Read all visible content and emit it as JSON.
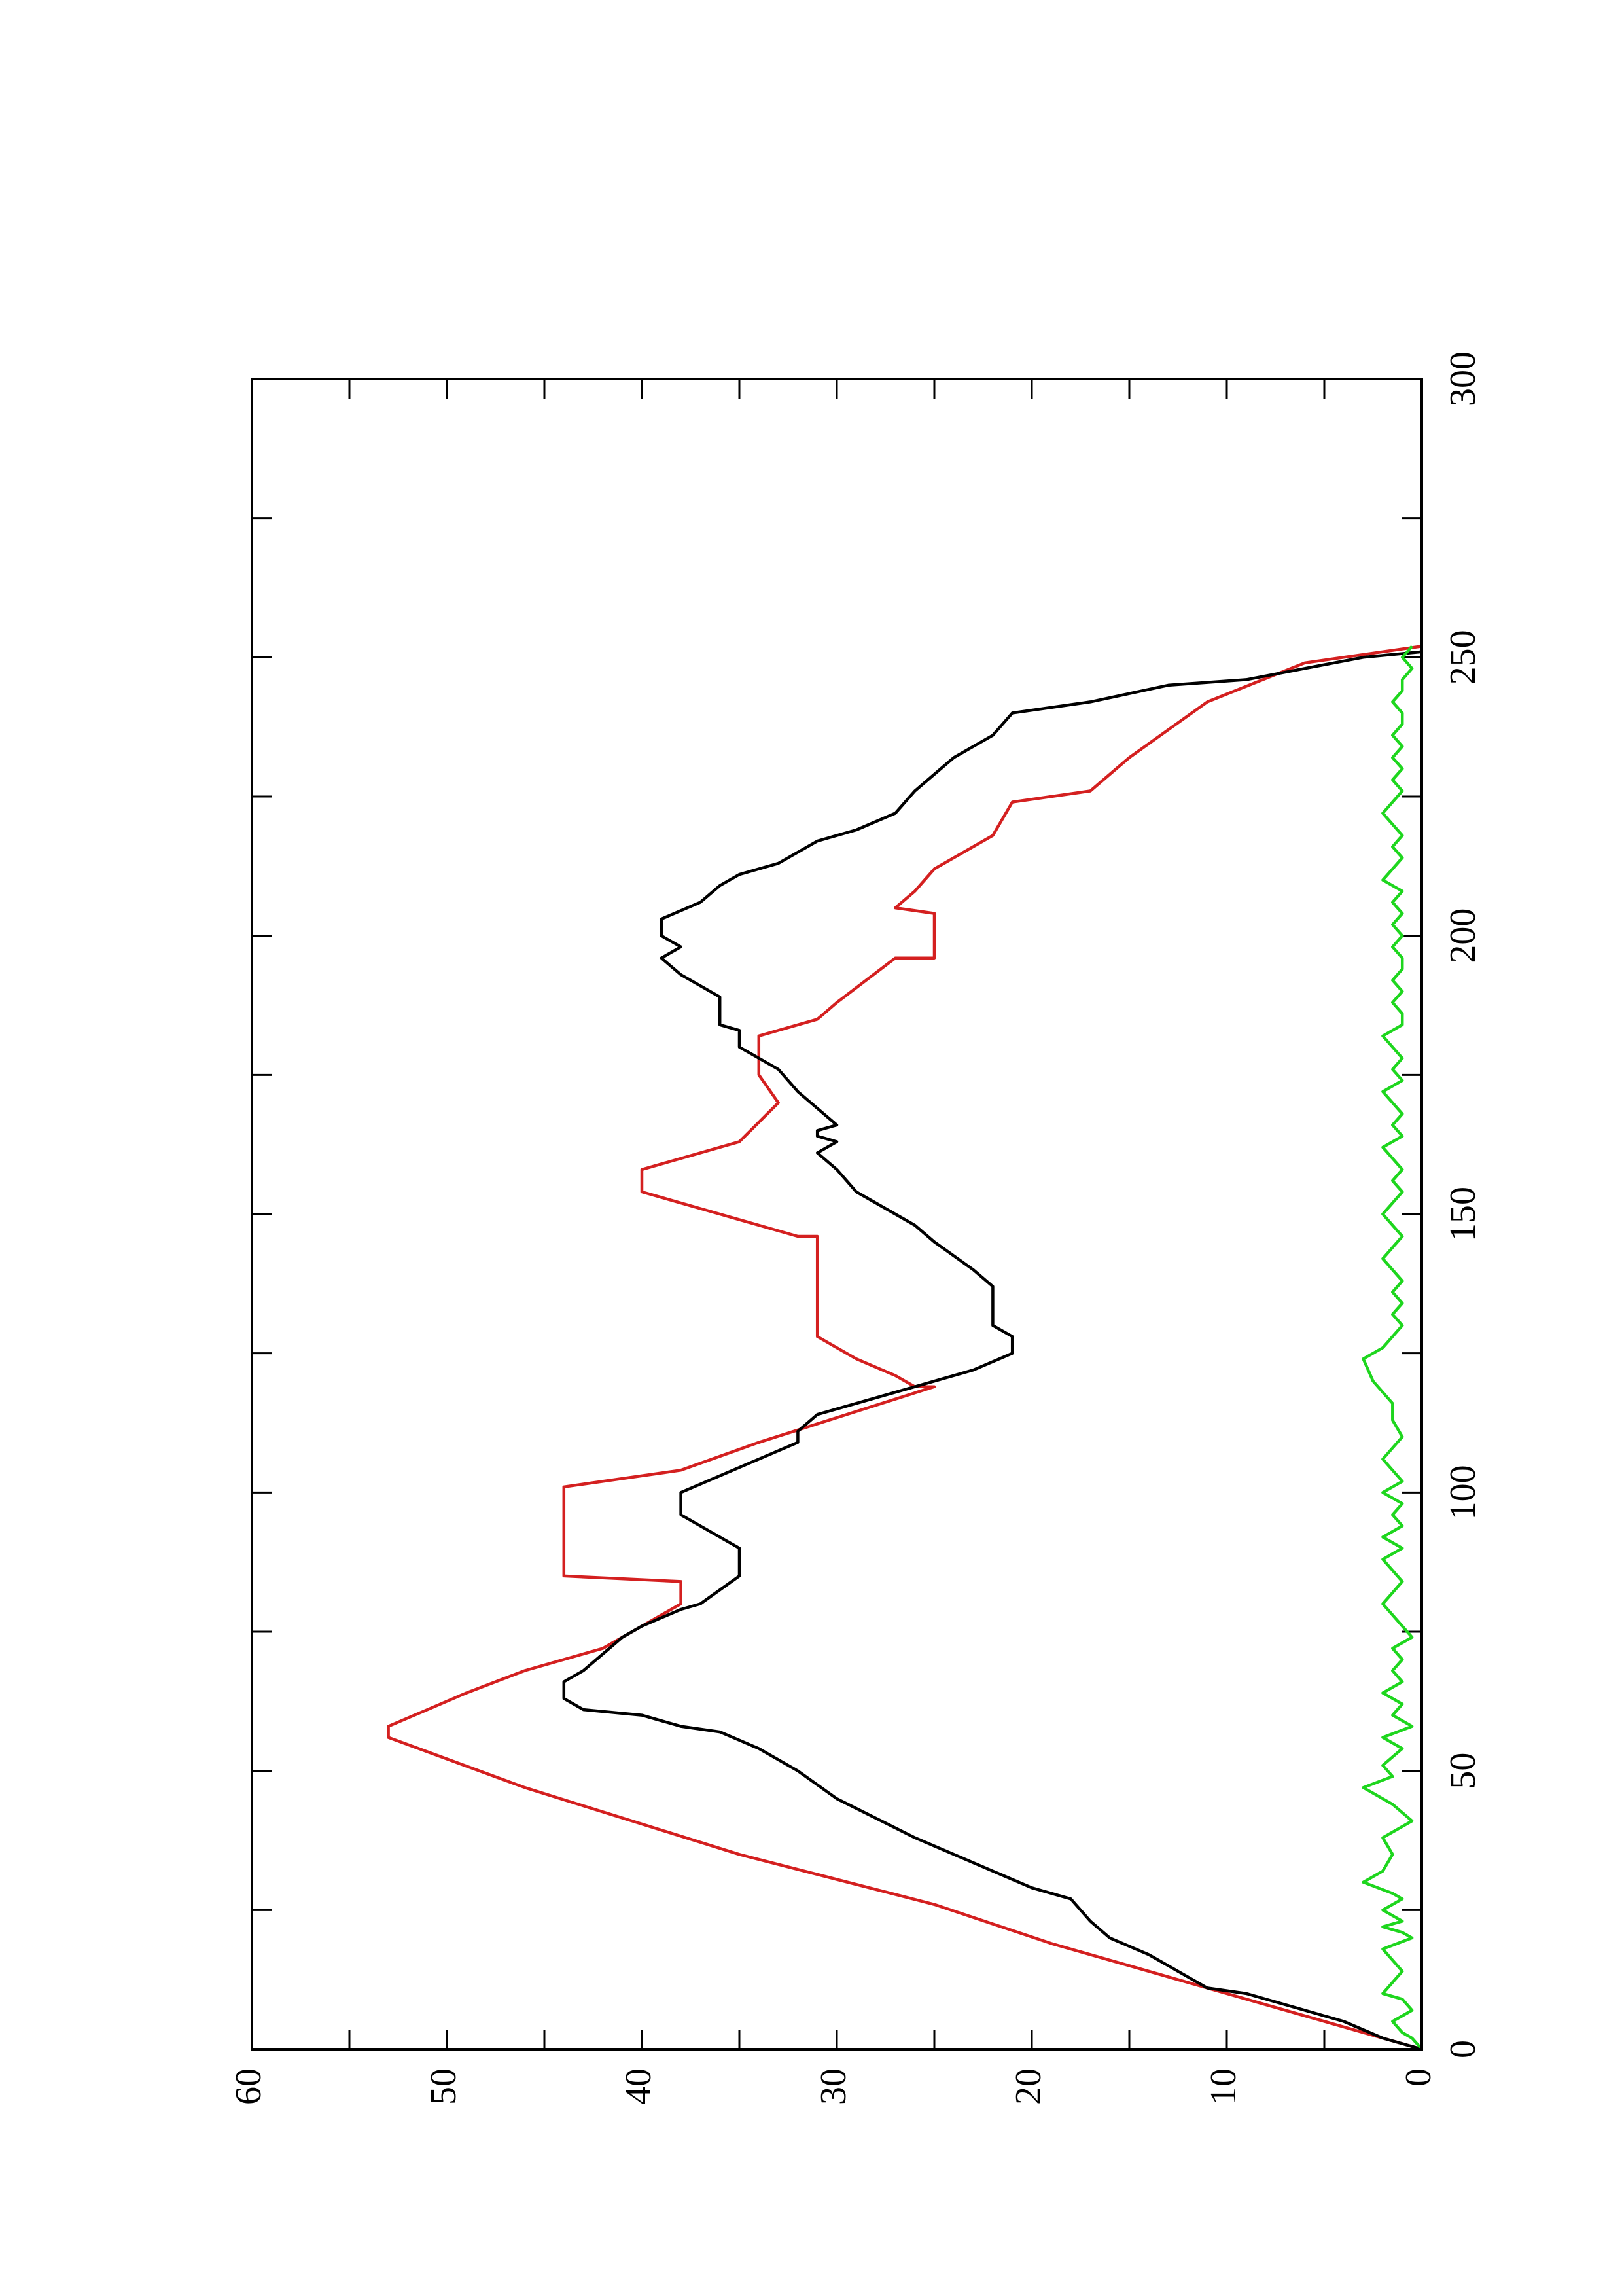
{
  "chart_data": {
    "type": "line",
    "title": "",
    "xlabel": "",
    "ylabel": "",
    "orientation": "rotated-90-ccw",
    "xlim": [
      0,
      300
    ],
    "ylim": [
      0,
      60
    ],
    "x_ticks": [
      "0",
      "50",
      "100",
      "150",
      "200",
      "250",
      "300"
    ],
    "y_ticks": [
      "0",
      "10",
      "20",
      "30",
      "40",
      "50",
      "60"
    ],
    "grid": false,
    "legend": "none",
    "series": [
      {
        "color": "#d42020",
        "style": "step",
        "points": [
          [
            0,
            0
          ],
          [
            11,
            11
          ],
          [
            19,
            19
          ],
          [
            26,
            25
          ],
          [
            35,
            35
          ],
          [
            47,
            46
          ],
          [
            56,
            53
          ],
          [
            58,
            53
          ],
          [
            64,
            49
          ],
          [
            68,
            46
          ],
          [
            72,
            42
          ],
          [
            80,
            38
          ],
          [
            84,
            38
          ],
          [
            85,
            44
          ],
          [
            101,
            44
          ],
          [
            104,
            38
          ],
          [
            109,
            34
          ],
          [
            119,
            25
          ],
          [
            119,
            26
          ],
          [
            121,
            27
          ],
          [
            124,
            29
          ],
          [
            128,
            31
          ],
          [
            146,
            31
          ],
          [
            146,
            32
          ],
          [
            150,
            36
          ],
          [
            154,
            40
          ],
          [
            158,
            40
          ],
          [
            163,
            35
          ],
          [
            170,
            33
          ],
          [
            175,
            34
          ],
          [
            182,
            34
          ],
          [
            185,
            31
          ],
          [
            188,
            30
          ],
          [
            196,
            27
          ],
          [
            196,
            25
          ],
          [
            204,
            25
          ],
          [
            205,
            27
          ],
          [
            208,
            26
          ],
          [
            212,
            25
          ],
          [
            218,
            22
          ],
          [
            224,
            21
          ],
          [
            226,
            17
          ],
          [
            232,
            15
          ],
          [
            242,
            11
          ],
          [
            249,
            6
          ],
          [
            252,
            0
          ]
        ]
      },
      {
        "color": "#000000",
        "style": "line",
        "points": [
          [
            0,
            0
          ],
          [
            2,
            2
          ],
          [
            5,
            4
          ],
          [
            10,
            9
          ],
          [
            11,
            11
          ],
          [
            13,
            12
          ],
          [
            17,
            14
          ],
          [
            20,
            16
          ],
          [
            23,
            17
          ],
          [
            27,
            18
          ],
          [
            29,
            20
          ],
          [
            32,
            22
          ],
          [
            38,
            26
          ],
          [
            45,
            30
          ],
          [
            50,
            32
          ],
          [
            54,
            34
          ],
          [
            57,
            36
          ],
          [
            58,
            38
          ],
          [
            60,
            40
          ],
          [
            61,
            43
          ],
          [
            63,
            44
          ],
          [
            66,
            44
          ],
          [
            68,
            43
          ],
          [
            71,
            42
          ],
          [
            74,
            41
          ],
          [
            76,
            40
          ],
          [
            79,
            38
          ],
          [
            80,
            37
          ],
          [
            85,
            35
          ],
          [
            86,
            35
          ],
          [
            90,
            35
          ],
          [
            92,
            36
          ],
          [
            96,
            38
          ],
          [
            100,
            38
          ],
          [
            103,
            36
          ],
          [
            106,
            34
          ],
          [
            109,
            32
          ],
          [
            111,
            32
          ],
          [
            114,
            31
          ],
          [
            117,
            28
          ],
          [
            120,
            25
          ],
          [
            122,
            23
          ],
          [
            125,
            21
          ],
          [
            128,
            21
          ],
          [
            130,
            22
          ],
          [
            133,
            22
          ],
          [
            137,
            22
          ],
          [
            140,
            23
          ],
          [
            145,
            25
          ],
          [
            148,
            26
          ],
          [
            150,
            27
          ],
          [
            154,
            29
          ],
          [
            158,
            30
          ],
          [
            161,
            31
          ],
          [
            163,
            30
          ],
          [
            164,
            31
          ],
          [
            165,
            31
          ],
          [
            166,
            30
          ],
          [
            169,
            31
          ],
          [
            172,
            32
          ],
          [
            176,
            33
          ],
          [
            180,
            35
          ],
          [
            183,
            35
          ],
          [
            184,
            36
          ],
          [
            189,
            36
          ],
          [
            191,
            37
          ],
          [
            193,
            38
          ],
          [
            196,
            39
          ],
          [
            198,
            38
          ],
          [
            200,
            39
          ],
          [
            203,
            39
          ],
          [
            206,
            37
          ],
          [
            209,
            36
          ],
          [
            211,
            35
          ],
          [
            213,
            33
          ],
          [
            217,
            31
          ],
          [
            219,
            29
          ],
          [
            222,
            27
          ],
          [
            226,
            26
          ],
          [
            229,
            25
          ],
          [
            232,
            24
          ],
          [
            236,
            22
          ],
          [
            240,
            21
          ],
          [
            242,
            17
          ],
          [
            245,
            13
          ],
          [
            246,
            9
          ],
          [
            248,
            6
          ],
          [
            250,
            3
          ],
          [
            251,
            0
          ]
        ]
      },
      {
        "color": "#1ed61e",
        "style": "line",
        "points": [
          [
            0,
            0
          ],
          [
            2,
            0.5
          ],
          [
            3,
            1
          ],
          [
            5,
            1.5
          ],
          [
            7,
            0.5
          ],
          [
            9,
            1
          ],
          [
            10,
            2
          ],
          [
            12,
            1.5
          ],
          [
            14,
            1
          ],
          [
            16,
            1.5
          ],
          [
            18,
            2
          ],
          [
            20,
            0.5
          ],
          [
            21,
            1
          ],
          [
            22,
            2
          ],
          [
            23,
            1
          ],
          [
            25,
            2
          ],
          [
            27,
            1
          ],
          [
            28,
            1.5
          ],
          [
            30,
            3
          ],
          [
            32,
            2
          ],
          [
            35,
            1.5
          ],
          [
            38,
            2
          ],
          [
            41,
            0.5
          ],
          [
            44,
            1.5
          ],
          [
            47,
            3
          ],
          [
            49,
            1.5
          ],
          [
            51,
            2
          ],
          [
            54,
            1
          ],
          [
            56,
            2
          ],
          [
            58,
            0.5
          ],
          [
            60,
            1.5
          ],
          [
            62,
            1
          ],
          [
            64,
            2
          ],
          [
            66,
            1
          ],
          [
            68,
            1.5
          ],
          [
            70,
            1
          ],
          [
            72,
            1.5
          ],
          [
            74,
            0.5
          ],
          [
            76,
            1
          ],
          [
            78,
            1.5
          ],
          [
            80,
            2
          ],
          [
            82,
            1.5
          ],
          [
            84,
            1
          ],
          [
            86,
            1.5
          ],
          [
            88,
            2
          ],
          [
            90,
            1
          ],
          [
            92,
            2
          ],
          [
            94,
            1
          ],
          [
            96,
            1.5
          ],
          [
            98,
            1
          ],
          [
            100,
            2
          ],
          [
            102,
            1
          ],
          [
            104,
            1.5
          ],
          [
            106,
            2
          ],
          [
            108,
            1.5
          ],
          [
            110,
            1
          ],
          [
            113,
            1.5
          ],
          [
            116,
            1.5
          ],
          [
            118,
            2
          ],
          [
            120,
            2.5
          ],
          [
            124,
            3
          ],
          [
            126,
            2
          ],
          [
            128,
            1.5
          ],
          [
            130,
            1
          ],
          [
            132,
            1.5
          ],
          [
            134,
            1
          ],
          [
            136,
            1.5
          ],
          [
            138,
            1
          ],
          [
            140,
            1.5
          ],
          [
            142,
            2
          ],
          [
            144,
            1.5
          ],
          [
            146,
            1
          ],
          [
            148,
            1.5
          ],
          [
            150,
            2
          ],
          [
            152,
            1.5
          ],
          [
            154,
            1
          ],
          [
            156,
            1.5
          ],
          [
            158,
            1
          ],
          [
            160,
            1.5
          ],
          [
            162,
            2
          ],
          [
            164,
            1
          ],
          [
            166,
            1.5
          ],
          [
            168,
            1
          ],
          [
            170,
            1.5
          ],
          [
            172,
            2
          ],
          [
            174,
            1
          ],
          [
            176,
            1.5
          ],
          [
            178,
            1
          ],
          [
            180,
            1.5
          ],
          [
            182,
            2
          ],
          [
            184,
            1
          ],
          [
            186,
            1
          ],
          [
            188,
            1.5
          ],
          [
            190,
            1
          ],
          [
            192,
            1.5
          ],
          [
            194,
            1
          ],
          [
            196,
            1
          ],
          [
            198,
            1.5
          ],
          [
            200,
            1
          ],
          [
            202,
            1.5
          ],
          [
            204,
            1
          ],
          [
            206,
            1.5
          ],
          [
            208,
            1
          ],
          [
            210,
            2
          ],
          [
            212,
            1.5
          ],
          [
            214,
            1
          ],
          [
            216,
            1.5
          ],
          [
            218,
            1
          ],
          [
            220,
            1.5
          ],
          [
            222,
            2
          ],
          [
            224,
            1.5
          ],
          [
            226,
            1
          ],
          [
            228,
            1.5
          ],
          [
            230,
            1
          ],
          [
            232,
            1.5
          ],
          [
            234,
            1
          ],
          [
            236,
            1.5
          ],
          [
            238,
            1
          ],
          [
            240,
            1
          ],
          [
            242,
            1.5
          ],
          [
            244,
            1
          ],
          [
            246,
            1
          ],
          [
            248,
            0.5
          ],
          [
            250,
            1
          ],
          [
            252,
            0.5
          ]
        ]
      }
    ]
  }
}
